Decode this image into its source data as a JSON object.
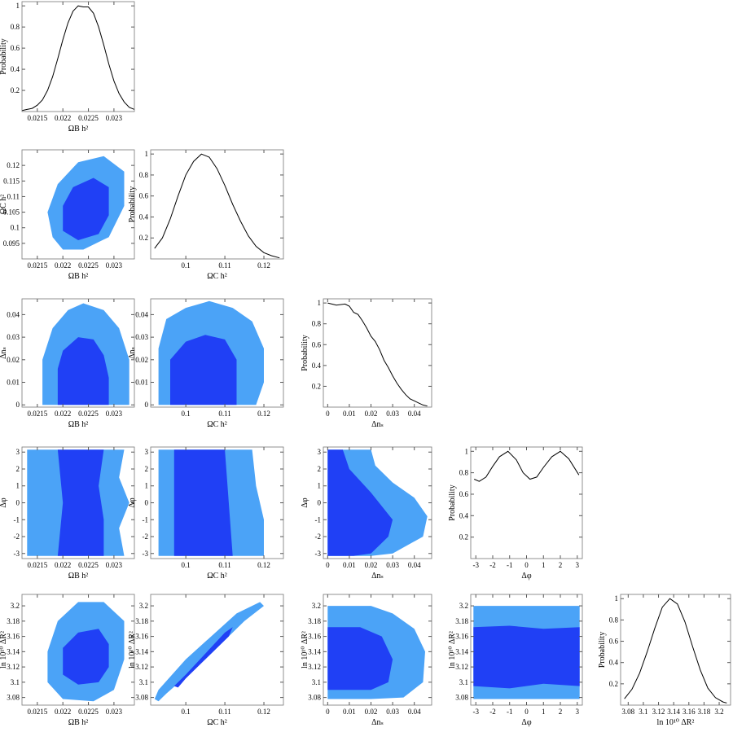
{
  "chart_data": [
    {
      "type": "line",
      "x_label": "ΩB h²",
      "y_label": "Probability",
      "color": "#000000",
      "xlim": [
        0.0212,
        0.0234
      ],
      "ylim": [
        0,
        1.04
      ],
      "xticks": [
        0.0215,
        0.022,
        0.0225,
        0.023
      ],
      "yticks": [
        0.2,
        0.4,
        0.6,
        0.8,
        1
      ],
      "x": [
        0.0212,
        0.0213,
        0.0214,
        0.0215,
        0.0216,
        0.0217,
        0.0218,
        0.0219,
        0.022,
        0.0221,
        0.0222,
        0.0223,
        0.0224,
        0.0225,
        0.0226,
        0.0227,
        0.0228,
        0.0229,
        0.023,
        0.0231,
        0.0232,
        0.0233,
        0.0234
      ],
      "values": [
        0.01,
        0.02,
        0.03,
        0.06,
        0.11,
        0.2,
        0.33,
        0.5,
        0.68,
        0.84,
        0.95,
        1.0,
        0.99,
        0.99,
        0.93,
        0.8,
        0.63,
        0.45,
        0.29,
        0.17,
        0.09,
        0.04,
        0.02
      ]
    },
    {
      "type": "contour",
      "x_label": "ΩB h²",
      "y_label": "ΩC h²",
      "xlim": [
        0.0212,
        0.0234
      ],
      "ylim": [
        0.09,
        0.125
      ],
      "xticks": [
        0.0215,
        0.022,
        0.0225,
        0.023
      ],
      "yticks": [
        0.095,
        0.1,
        0.105,
        0.11,
        0.115,
        0.12
      ],
      "series": [
        {
          "color": "#4ba3f7",
          "x": [
            0.0218,
            0.0217,
            0.0219,
            0.0223,
            0.0228,
            0.0232,
            0.0232,
            0.0229,
            0.0224,
            0.022
          ],
          "y": [
            0.097,
            0.105,
            0.114,
            0.121,
            0.123,
            0.118,
            0.107,
            0.097,
            0.093,
            0.093
          ]
        },
        {
          "color": "#2040f5",
          "x": [
            0.022,
            0.022,
            0.0222,
            0.0226,
            0.0229,
            0.0229,
            0.0227,
            0.0223
          ],
          "y": [
            0.099,
            0.107,
            0.113,
            0.116,
            0.113,
            0.104,
            0.098,
            0.096
          ]
        }
      ]
    },
    {
      "type": "line",
      "x_label": "ΩC h²",
      "y_label": "Probability",
      "color": "#000000",
      "xlim": [
        0.091,
        0.125
      ],
      "ylim": [
        0,
        1.04
      ],
      "xticks": [
        0.1,
        0.11,
        0.12
      ],
      "yticks": [
        0.2,
        0.4,
        0.6,
        0.8,
        1
      ],
      "x": [
        0.092,
        0.094,
        0.096,
        0.098,
        0.1,
        0.102,
        0.104,
        0.106,
        0.108,
        0.11,
        0.112,
        0.114,
        0.116,
        0.118,
        0.12,
        0.122,
        0.124
      ],
      "values": [
        0.1,
        0.2,
        0.38,
        0.6,
        0.8,
        0.93,
        1.0,
        0.97,
        0.86,
        0.7,
        0.52,
        0.36,
        0.22,
        0.12,
        0.06,
        0.03,
        0.01
      ]
    },
    {
      "type": "contour",
      "x_label": "ΩB h²",
      "y_label": "Δnₛ",
      "xlim": [
        0.0212,
        0.0234
      ],
      "ylim": [
        -0.001,
        0.047
      ],
      "xticks": [
        0.0215,
        0.022,
        0.0225,
        0.023
      ],
      "yticks": [
        0,
        0.01,
        0.02,
        0.03,
        0.04
      ],
      "series": [
        {
          "color": "#4ba3f7",
          "x": [
            0.0216,
            0.0216,
            0.0218,
            0.0221,
            0.0224,
            0.0228,
            0.0231,
            0.0233,
            0.0233
          ],
          "y": [
            0,
            0.02,
            0.034,
            0.042,
            0.045,
            0.042,
            0.034,
            0.02,
            0
          ]
        },
        {
          "color": "#2040f5",
          "x": [
            0.0219,
            0.0219,
            0.022,
            0.0223,
            0.0226,
            0.0228,
            0.0229,
            0.0229
          ],
          "y": [
            0,
            0.016,
            0.024,
            0.03,
            0.029,
            0.022,
            0.012,
            0
          ]
        }
      ]
    },
    {
      "type": "contour",
      "x_label": "ΩC h²",
      "y_label": "Δnₛ",
      "xlim": [
        0.091,
        0.125
      ],
      "ylim": [
        -0.001,
        0.047
      ],
      "xticks": [
        0.1,
        0.11,
        0.12
      ],
      "yticks": [
        0,
        0.01,
        0.02,
        0.03,
        0.04
      ],
      "series": [
        {
          "color": "#4ba3f7",
          "x": [
            0.093,
            0.093,
            0.095,
            0.1,
            0.106,
            0.112,
            0.117,
            0.12,
            0.12,
            0.118
          ],
          "y": [
            0,
            0.025,
            0.038,
            0.043,
            0.046,
            0.043,
            0.037,
            0.025,
            0.01,
            0
          ]
        },
        {
          "color": "#2040f5",
          "x": [
            0.096,
            0.096,
            0.1,
            0.105,
            0.11,
            0.113,
            0.113
          ],
          "y": [
            0,
            0.02,
            0.028,
            0.031,
            0.029,
            0.02,
            0
          ]
        }
      ]
    },
    {
      "type": "line",
      "x_label": "Δnₛ",
      "y_label": "Probability",
      "color": "#000000",
      "xlim": [
        -0.002,
        0.048
      ],
      "ylim": [
        0,
        1.04
      ],
      "xticks": [
        0,
        0.01,
        0.02,
        0.03,
        0.04
      ],
      "yticks": [
        0.2,
        0.4,
        0.6,
        0.8,
        1
      ],
      "x": [
        0,
        0.004,
        0.008,
        0.01,
        0.012,
        0.014,
        0.016,
        0.018,
        0.02,
        0.022,
        0.024,
        0.026,
        0.028,
        0.03,
        0.032,
        0.034,
        0.036,
        0.038,
        0.04,
        0.042,
        0.044,
        0.046
      ],
      "values": [
        1.0,
        0.98,
        0.99,
        0.97,
        0.91,
        0.89,
        0.83,
        0.76,
        0.68,
        0.63,
        0.55,
        0.45,
        0.38,
        0.3,
        0.23,
        0.17,
        0.12,
        0.08,
        0.06,
        0.04,
        0.02,
        0.01
      ]
    },
    {
      "type": "contour",
      "x_label": "ΩB h²",
      "y_label": "Δφ",
      "xlim": [
        0.0212,
        0.0234
      ],
      "ylim": [
        -3.3,
        3.3
      ],
      "xticks": [
        0.0215,
        0.022,
        0.0225,
        0.023
      ],
      "yticks": [
        -3,
        -2,
        -1,
        0,
        1,
        2,
        3
      ],
      "series": [
        {
          "color": "#4ba3f7",
          "x": [
            0.0213,
            0.0213,
            0.0232,
            0.0231,
            0.0233,
            0.0231,
            0.0232
          ],
          "y": [
            -3.14,
            3.14,
            3.14,
            1.5,
            0,
            -1.5,
            -3.14
          ]
        },
        {
          "color": "#2040f5",
          "x": [
            0.0219,
            0.022,
            0.0219,
            0.0228,
            0.0227,
            0.0228,
            0.0228
          ],
          "y": [
            -3.14,
            0,
            3.14,
            3.14,
            1,
            -1,
            -3.14
          ]
        }
      ]
    },
    {
      "type": "contour",
      "x_label": "ΩC h²",
      "y_label": "Δφ",
      "xlim": [
        0.091,
        0.125
      ],
      "ylim": [
        -3.3,
        3.3
      ],
      "xticks": [
        0.1,
        0.11,
        0.12
      ],
      "yticks": [
        -3,
        -2,
        -1,
        0,
        1,
        2,
        3
      ],
      "series": [
        {
          "color": "#4ba3f7",
          "x": [
            0.093,
            0.093,
            0.117,
            0.118,
            0.12,
            0.12
          ],
          "y": [
            -3.14,
            3.14,
            3.14,
            1,
            -1,
            -3.14
          ]
        },
        {
          "color": "#2040f5",
          "x": [
            0.097,
            0.097,
            0.11,
            0.111,
            0.112
          ],
          "y": [
            -3.14,
            3.14,
            3.14,
            0,
            -3.14
          ]
        }
      ]
    },
    {
      "type": "contour",
      "x_label": "Δnₛ",
      "y_label": "Δφ",
      "xlim": [
        -0.002,
        0.048
      ],
      "ylim": [
        -3.3,
        3.3
      ],
      "xticks": [
        0,
        0.01,
        0.02,
        0.03,
        0.04
      ],
      "yticks": [
        -3,
        -2,
        -1,
        0,
        1,
        2,
        3
      ],
      "series": [
        {
          "color": "#4ba3f7",
          "x": [
            0,
            0,
            0.02,
            0.022,
            0.03,
            0.04,
            0.046,
            0.044,
            0.03,
            0.02
          ],
          "y": [
            -3.14,
            3.14,
            3.14,
            2.2,
            1.2,
            0.3,
            -0.8,
            -2,
            -3,
            -3.14
          ]
        },
        {
          "color": "#2040f5",
          "x": [
            0,
            0,
            0.007,
            0.01,
            0.02,
            0.03,
            0.028,
            0.02,
            0.012
          ],
          "y": [
            -3.14,
            3.14,
            3.14,
            2,
            0.6,
            -1,
            -2,
            -3,
            -3.14
          ]
        }
      ]
    },
    {
      "type": "line",
      "x_label": "Δφ",
      "y_label": "Probability",
      "color": "#000000",
      "xlim": [
        -3.3,
        3.3
      ],
      "ylim": [
        0,
        1.04
      ],
      "xticks": [
        -3,
        -2,
        -1,
        0,
        1,
        2,
        3
      ],
      "yticks": [
        0.2,
        0.4,
        0.6,
        0.8,
        1
      ],
      "x": [
        -3.1,
        -2.8,
        -2.4,
        -2,
        -1.6,
        -1.1,
        -0.6,
        -0.2,
        0.2,
        0.6,
        1.0,
        1.5,
        2.0,
        2.5,
        3.1
      ],
      "values": [
        0.74,
        0.72,
        0.76,
        0.86,
        0.95,
        1.0,
        0.92,
        0.8,
        0.74,
        0.76,
        0.85,
        0.95,
        1.0,
        0.93,
        0.78
      ]
    },
    {
      "type": "contour",
      "x_label": "ΩB h²",
      "y_label": "ln 10¹⁰ ΔR²",
      "xlim": [
        0.0212,
        0.0234
      ],
      "ylim": [
        3.07,
        3.215
      ],
      "xticks": [
        0.0215,
        0.022,
        0.0225,
        0.023
      ],
      "yticks": [
        3.08,
        3.1,
        3.12,
        3.14,
        3.16,
        3.18,
        3.2
      ],
      "series": [
        {
          "color": "#4ba3f7",
          "x": [
            0.0217,
            0.0217,
            0.0219,
            0.0223,
            0.0228,
            0.0232,
            0.0232,
            0.023,
            0.0226,
            0.022
          ],
          "y": [
            3.1,
            3.14,
            3.18,
            3.205,
            3.205,
            3.18,
            3.13,
            3.09,
            3.075,
            3.078
          ]
        },
        {
          "color": "#2040f5",
          "x": [
            0.022,
            0.022,
            0.0223,
            0.0227,
            0.0229,
            0.0229,
            0.0227,
            0.0223
          ],
          "y": [
            3.11,
            3.145,
            3.165,
            3.17,
            3.15,
            3.12,
            3.1,
            3.097
          ]
        }
      ]
    },
    {
      "type": "contour",
      "x_label": "ΩC h²",
      "y_label": "ln 10¹⁰ ΔR²",
      "xlim": [
        0.091,
        0.125
      ],
      "ylim": [
        3.07,
        3.215
      ],
      "xticks": [
        0.1,
        0.11,
        0.12
      ],
      "yticks": [
        3.08,
        3.1,
        3.12,
        3.14,
        3.16,
        3.18,
        3.2
      ],
      "series": [
        {
          "color": "#4ba3f7",
          "x": [
            0.093,
            0.095,
            0.105,
            0.115,
            0.12,
            0.119,
            0.113,
            0.1,
            0.093,
            0.092
          ],
          "y": [
            3.075,
            3.085,
            3.13,
            3.18,
            3.2,
            3.205,
            3.19,
            3.13,
            3.09,
            3.078
          ]
        },
        {
          "color": "#2040f5",
          "x": [
            0.097,
            0.1,
            0.11,
            0.112,
            0.111,
            0.1,
            0.098
          ],
          "y": [
            3.095,
            3.11,
            3.165,
            3.172,
            3.16,
            3.105,
            3.093
          ]
        }
      ]
    },
    {
      "type": "contour",
      "x_label": "Δnₛ",
      "y_label": "ln 10¹⁰ ΔR²",
      "xlim": [
        -0.002,
        0.048
      ],
      "ylim": [
        3.07,
        3.215
      ],
      "xticks": [
        0,
        0.01,
        0.02,
        0.03,
        0.04
      ],
      "yticks": [
        3.08,
        3.1,
        3.12,
        3.14,
        3.16,
        3.18,
        3.2
      ],
      "series": [
        {
          "color": "#4ba3f7",
          "x": [
            0,
            0,
            0.02,
            0.03,
            0.04,
            0.045,
            0.044,
            0.035,
            0.02
          ],
          "y": [
            3.078,
            3.2,
            3.2,
            3.19,
            3.17,
            3.14,
            3.1,
            3.08,
            3.078
          ]
        },
        {
          "color": "#2040f5",
          "x": [
            0,
            0,
            0.015,
            0.025,
            0.03,
            0.028,
            0.02
          ],
          "y": [
            3.09,
            3.172,
            3.172,
            3.16,
            3.13,
            3.1,
            3.09
          ]
        }
      ]
    },
    {
      "type": "contour",
      "x_label": "Δφ",
      "y_label": "ln 10¹⁰ ΔR²",
      "xlim": [
        -3.3,
        3.3
      ],
      "ylim": [
        3.07,
        3.215
      ],
      "xticks": [
        -3,
        -2,
        -1,
        0,
        1,
        2,
        3
      ],
      "yticks": [
        3.08,
        3.1,
        3.12,
        3.14,
        3.16,
        3.18,
        3.2
      ],
      "series": [
        {
          "color": "#4ba3f7",
          "x": [
            -3.14,
            -3.14,
            3.14,
            3.14
          ],
          "y": [
            3.078,
            3.2,
            3.2,
            3.078
          ]
        },
        {
          "color": "#2040f5",
          "x": [
            -3.14,
            -3.14,
            -1,
            1,
            3.14,
            3.14,
            1,
            -1
          ],
          "y": [
            3.095,
            3.172,
            3.174,
            3.17,
            3.172,
            3.095,
            3.098,
            3.092
          ]
        }
      ]
    },
    {
      "type": "line",
      "x_label": "ln 10¹⁰ ΔR²",
      "y_label": "Probability",
      "color": "#000000",
      "xlim": [
        3.07,
        3.215
      ],
      "ylim": [
        0,
        1.04
      ],
      "xticks": [
        3.08,
        3.1,
        3.12,
        3.14,
        3.16,
        3.18,
        3.2
      ],
      "yticks": [
        0.2,
        0.4,
        0.6,
        0.8,
        1
      ],
      "x": [
        3.075,
        3.085,
        3.095,
        3.105,
        3.115,
        3.125,
        3.135,
        3.145,
        3.155,
        3.165,
        3.175,
        3.185,
        3.195,
        3.205,
        3.21
      ],
      "values": [
        0.06,
        0.15,
        0.3,
        0.5,
        0.72,
        0.92,
        1.0,
        0.95,
        0.78,
        0.55,
        0.33,
        0.16,
        0.07,
        0.03,
        0.02
      ]
    }
  ]
}
